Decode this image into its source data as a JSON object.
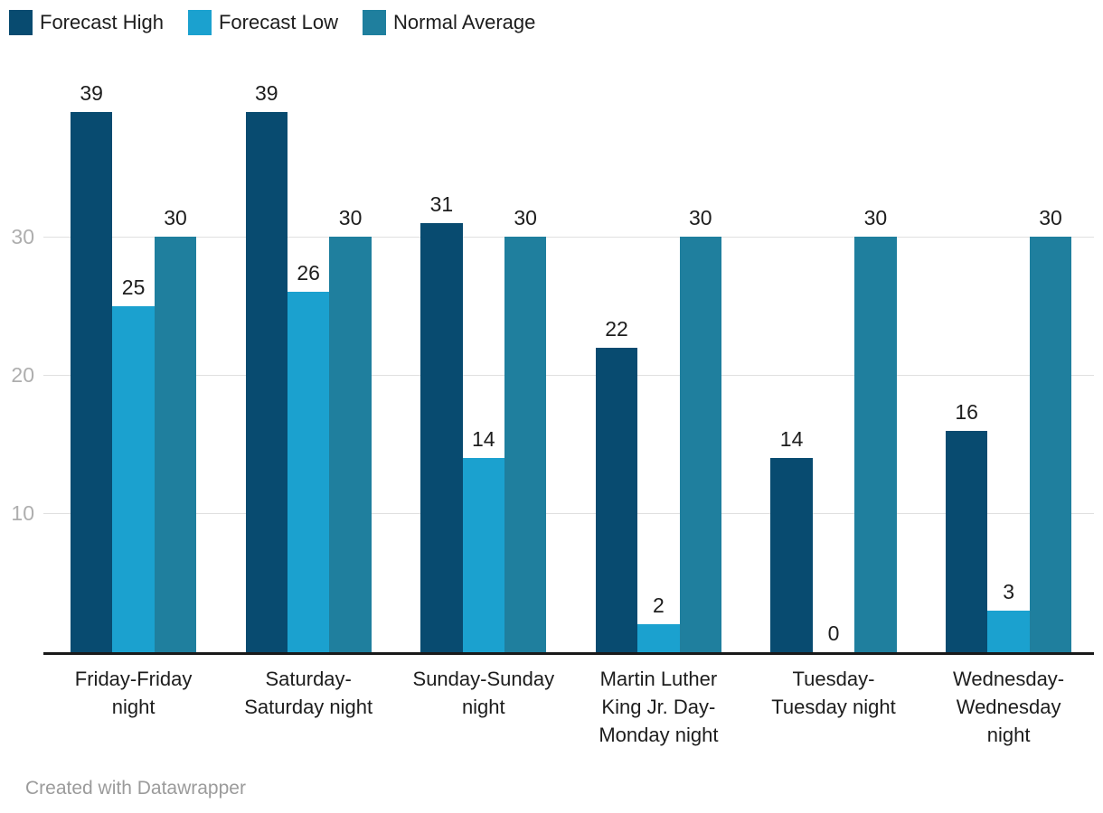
{
  "footer": {
    "attribution": "Created with Datawrapper"
  },
  "colors": {
    "grid": "#e0e0e0",
    "axis": "#1a1a1a",
    "tick_text": "#aeaeae",
    "label_text": "#1d1d1d",
    "footer_text": "#9b9b9b",
    "background": "#ffffff"
  },
  "chart_data": {
    "type": "bar",
    "title": "",
    "xlabel": "",
    "ylabel": "",
    "categories": [
      "Friday-Friday night",
      "Saturday-Saturday night",
      "Sunday-Sunday night",
      "Martin Luther King Jr. Day-Monday night",
      "Tuesday-Tuesday night",
      "Wednesday-Wednesday night"
    ],
    "category_lines": [
      [
        "Friday-Friday",
        "night"
      ],
      [
        "Saturday-",
        "Saturday night"
      ],
      [
        "Sunday-Sunday",
        "night"
      ],
      [
        "Martin Luther",
        "King Jr. Day-",
        "Monday night"
      ],
      [
        "Tuesday-",
        "Tuesday night"
      ],
      [
        "Wednesday-",
        "Wednesday",
        "night"
      ]
    ],
    "series": [
      {
        "name": "Forecast High",
        "color": "#084b70",
        "values": [
          39,
          39,
          31,
          22,
          14,
          16
        ]
      },
      {
        "name": "Forecast Low",
        "color": "#1ba1cf",
        "values": [
          25,
          26,
          14,
          2,
          0,
          3
        ]
      },
      {
        "name": "Normal Average",
        "color": "#1f7f9e",
        "values": [
          30,
          30,
          30,
          30,
          30,
          30
        ]
      }
    ],
    "yticks": [
      10,
      20,
      30
    ],
    "ylim": [
      0,
      40
    ],
    "grid": true,
    "legend_position": "top-left",
    "value_labels": true
  }
}
